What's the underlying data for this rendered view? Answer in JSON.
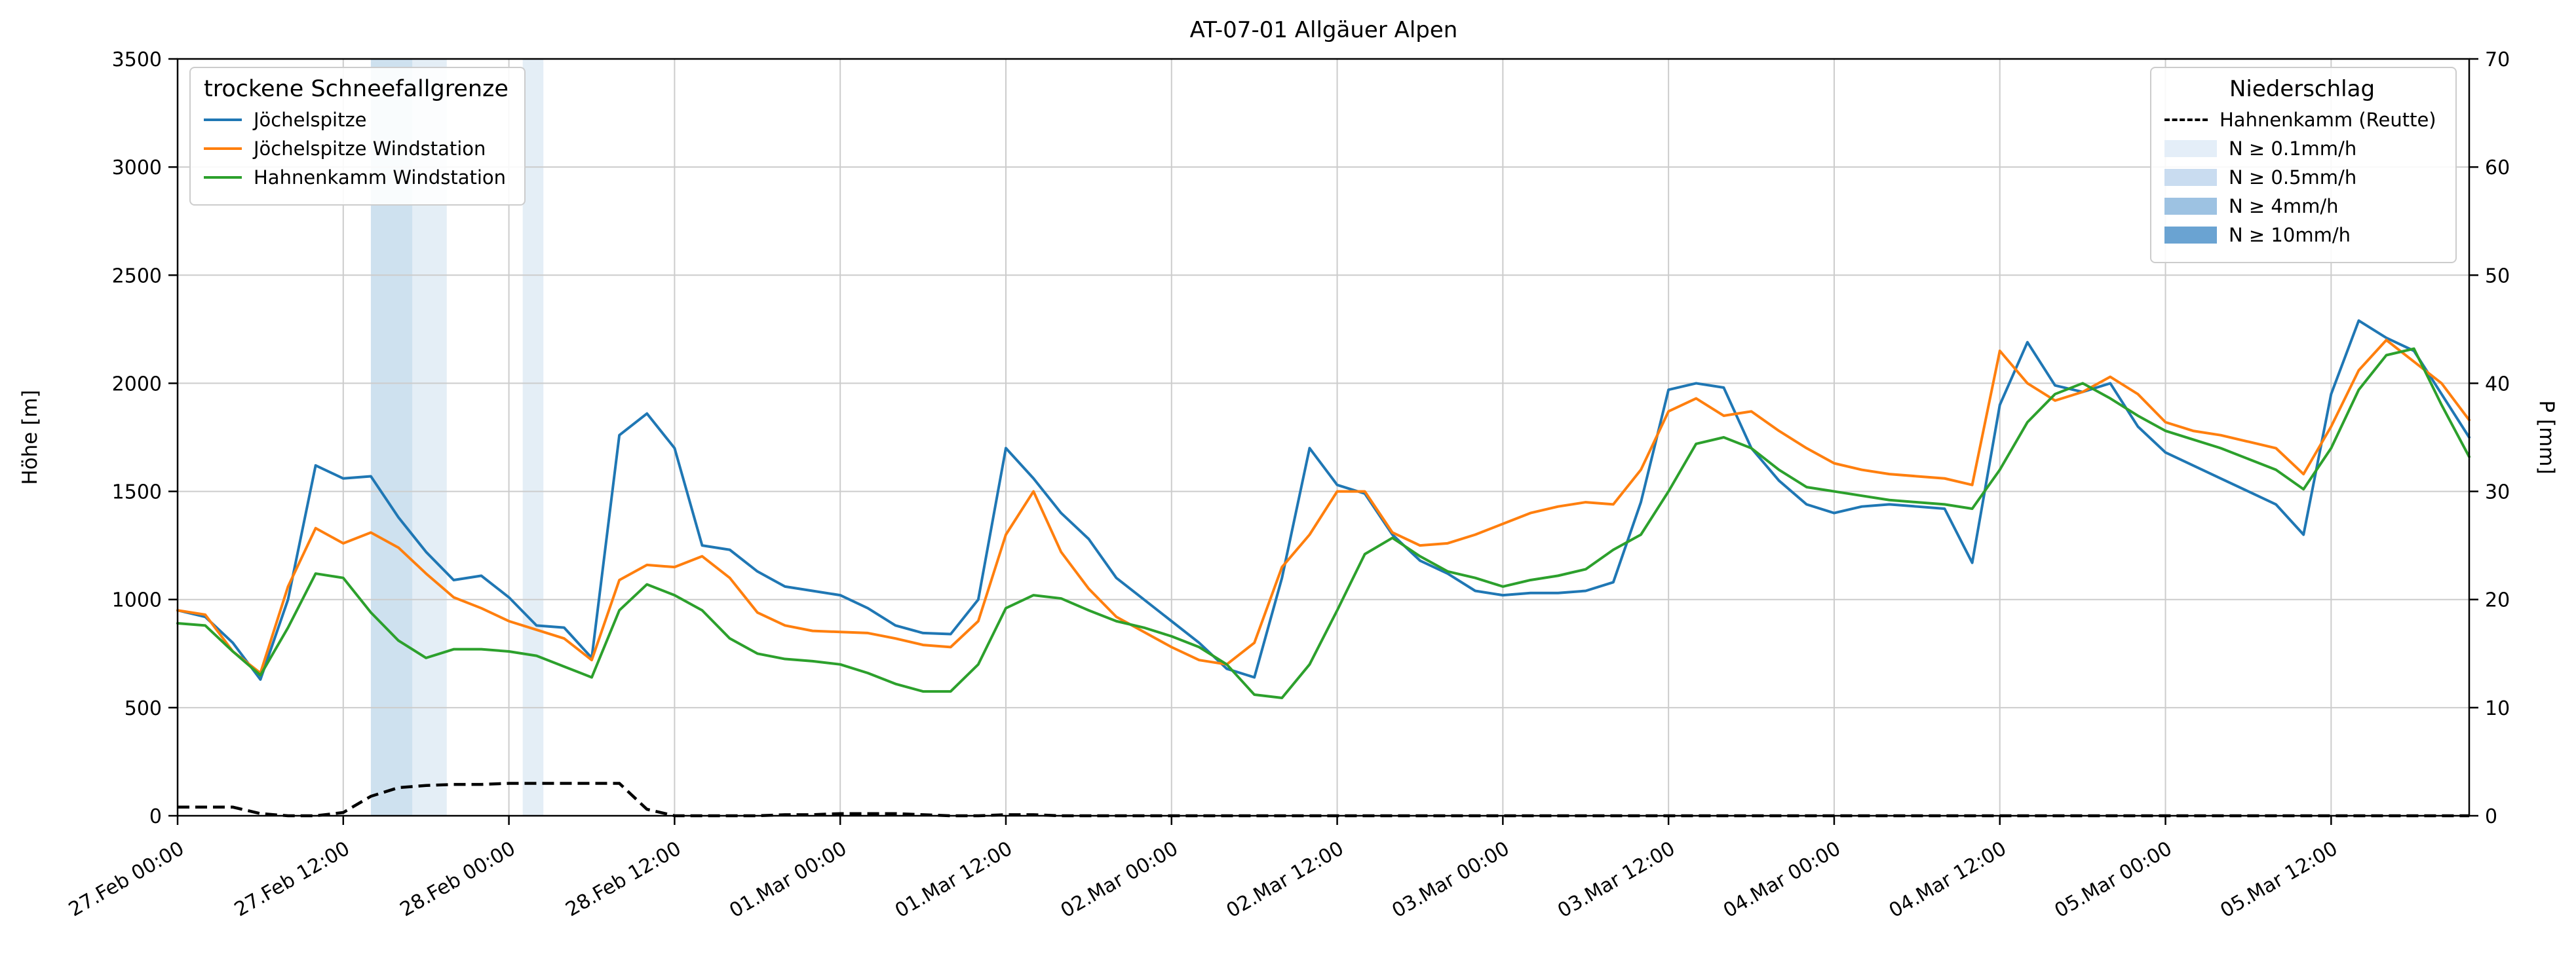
{
  "title": "AT-07-01 Allgäuer Alpen",
  "left_axis": {
    "label": "Höhe [m]"
  },
  "right_axis": {
    "label": "P [mm]"
  },
  "legend_snowline": {
    "title": "trockene Schneefallgrenze",
    "items": [
      {
        "label": "Jöchelspitze",
        "color": "#1f77b4"
      },
      {
        "label": "Jöchelspitze Windstation",
        "color": "#ff7f0e"
      },
      {
        "label": "Hahnenkamm Windstation",
        "color": "#2ca02c"
      }
    ]
  },
  "legend_precip": {
    "title": "Niederschlag",
    "line_item": {
      "label": "Hahnenkamm (Reutte)",
      "color": "#000000"
    },
    "patch_items": [
      {
        "label": "N ≥ 0.1mm/h",
        "color": "#e4eef8"
      },
      {
        "label": "N ≥ 0.5mm/h",
        "color": "#c9dcf0"
      },
      {
        "label": "N ≥ 4mm/h",
        "color": "#9dc2e2"
      },
      {
        "label": "N ≥ 10mm/h",
        "color": "#6aa3d2"
      }
    ]
  },
  "chart_data": {
    "type": "line",
    "title": "AT-07-01 Allgäuer Alpen",
    "xlabel": "",
    "ylabel_left": "Höhe [m]",
    "ylabel_right": "P [mm]",
    "grid": true,
    "x_unit": "hours since 27.Feb 00:00",
    "x_range": [
      0,
      166
    ],
    "y_left_range": [
      0,
      3500
    ],
    "y_right_range": [
      0,
      70
    ],
    "y_left_ticks": [
      0,
      500,
      1000,
      1500,
      2000,
      2500,
      3000,
      3500
    ],
    "y_right_ticks": [
      0,
      10,
      20,
      30,
      40,
      50,
      60,
      70
    ],
    "x_ticks": [
      {
        "hour": 0,
        "label": "27.Feb 00:00"
      },
      {
        "hour": 12,
        "label": "27.Feb 12:00"
      },
      {
        "hour": 24,
        "label": "28.Feb 00:00"
      },
      {
        "hour": 36,
        "label": "28.Feb 12:00"
      },
      {
        "hour": 48,
        "label": "01.Mar 00:00"
      },
      {
        "hour": 60,
        "label": "01.Mar 12:00"
      },
      {
        "hour": 72,
        "label": "02.Mar 00:00"
      },
      {
        "hour": 84,
        "label": "02.Mar 12:00"
      },
      {
        "hour": 96,
        "label": "03.Mar 00:00"
      },
      {
        "hour": 108,
        "label": "03.Mar 12:00"
      },
      {
        "hour": 120,
        "label": "04.Mar 00:00"
      },
      {
        "hour": 132,
        "label": "04.Mar 12:00"
      },
      {
        "hour": 144,
        "label": "05.Mar 00:00"
      },
      {
        "hour": 156,
        "label": "05.Mar 12:00"
      }
    ],
    "x_hours": [
      0,
      2,
      4,
      6,
      8,
      10,
      12,
      14,
      16,
      18,
      20,
      22,
      24,
      26,
      28,
      30,
      32,
      34,
      36,
      38,
      40,
      42,
      44,
      46,
      48,
      50,
      52,
      54,
      56,
      58,
      60,
      62,
      64,
      66,
      68,
      70,
      72,
      74,
      76,
      78,
      80,
      82,
      84,
      86,
      88,
      90,
      92,
      94,
      96,
      98,
      100,
      102,
      104,
      106,
      108,
      110,
      112,
      114,
      116,
      118,
      120,
      122,
      124,
      126,
      128,
      130,
      132,
      134,
      136,
      138,
      140,
      142,
      144,
      146,
      148,
      150,
      152,
      154,
      156,
      158,
      160,
      162,
      164,
      166
    ],
    "series": [
      {
        "name": "Jöchelspitze",
        "color": "#1f77b4",
        "axis": "left",
        "values": [
          950,
          920,
          800,
          630,
          1000,
          1620,
          1560,
          1570,
          1380,
          1220,
          1090,
          1110,
          1010,
          880,
          870,
          730,
          1760,
          1860,
          1700,
          1250,
          1230,
          1130,
          1060,
          1040,
          1020,
          960,
          880,
          845,
          840,
          1000,
          1700,
          1560,
          1400,
          1280,
          1100,
          1000,
          900,
          800,
          680,
          640,
          1100,
          1700,
          1530,
          1490,
          1300,
          1180,
          1120,
          1040,
          1020,
          1030,
          1030,
          1040,
          1080,
          1450,
          1970,
          2000,
          1980,
          1700,
          1550,
          1440,
          1400,
          1430,
          1440,
          1430,
          1420,
          1170,
          1900,
          2190,
          1990,
          1960,
          2000,
          1800,
          1680,
          1620,
          1560,
          1500,
          1440,
          1300,
          1950,
          2290,
          2210,
          2150,
          1950,
          1750
        ]
      },
      {
        "name": "Jöchelspitze Windstation",
        "color": "#ff7f0e",
        "axis": "left",
        "values": [
          950,
          930,
          760,
          660,
          1060,
          1330,
          1260,
          1310,
          1240,
          1120,
          1010,
          960,
          900,
          860,
          820,
          720,
          1090,
          1160,
          1150,
          1200,
          1100,
          940,
          880,
          855,
          850,
          845,
          820,
          790,
          780,
          900,
          1300,
          1500,
          1220,
          1050,
          920,
          850,
          780,
          720,
          700,
          800,
          1150,
          1300,
          1500,
          1500,
          1310,
          1250,
          1260,
          1300,
          1350,
          1400,
          1430,
          1450,
          1440,
          1600,
          1870,
          1930,
          1850,
          1870,
          1780,
          1700,
          1630,
          1600,
          1580,
          1570,
          1560,
          1530,
          2150,
          2000,
          1920,
          1960,
          2030,
          1950,
          1820,
          1780,
          1760,
          1730,
          1700,
          1580,
          1800,
          2060,
          2200,
          2100,
          2000,
          1830
        ]
      },
      {
        "name": "Hahnenkamm Windstation",
        "color": "#2ca02c",
        "axis": "left",
        "values": [
          890,
          880,
          760,
          650,
          870,
          1120,
          1100,
          940,
          810,
          730,
          770,
          770,
          760,
          740,
          690,
          640,
          950,
          1070,
          1020,
          950,
          820,
          750,
          725,
          715,
          700,
          660,
          610,
          575,
          575,
          700,
          960,
          1020,
          1005,
          950,
          900,
          870,
          830,
          780,
          700,
          560,
          545,
          700,
          950,
          1210,
          1285,
          1200,
          1130,
          1100,
          1060,
          1090,
          1110,
          1140,
          1230,
          1300,
          1500,
          1720,
          1750,
          1700,
          1600,
          1520,
          1500,
          1480,
          1460,
          1450,
          1440,
          1420,
          1600,
          1820,
          1950,
          2000,
          1930,
          1850,
          1780,
          1740,
          1700,
          1650,
          1600,
          1510,
          1700,
          1970,
          2130,
          2160,
          1900,
          1660
        ]
      }
    ],
    "precipitation_line": {
      "name": "Hahnenkamm (Reutte)",
      "color": "#000000",
      "axis": "right",
      "style": "dashed",
      "unit": "mm",
      "values": [
        0.8,
        0.8,
        0.8,
        0.2,
        0,
        0,
        0.3,
        1.8,
        2.6,
        2.8,
        2.9,
        2.9,
        3,
        3,
        3,
        3,
        3,
        0.6,
        0,
        0,
        0,
        0,
        0.1,
        0.1,
        0.2,
        0.2,
        0.2,
        0.1,
        0,
        0,
        0.1,
        0.1,
        0,
        0,
        0,
        0,
        0,
        0,
        0,
        0,
        0,
        0,
        0,
        0,
        0,
        0,
        0,
        0,
        0,
        0,
        0,
        0,
        0,
        0,
        0,
        0,
        0,
        0,
        0,
        0,
        0,
        0,
        0,
        0,
        0,
        0,
        0,
        0,
        0,
        0,
        0,
        0,
        0,
        0,
        0,
        0,
        0,
        0,
        0,
        0,
        0,
        0,
        0,
        0
      ]
    },
    "precip_bands": [
      {
        "from_hour": 14,
        "to_hour": 17,
        "level": "N ≥ 0.5mm/h",
        "color": "rgba(31,119,180,0.22)"
      },
      {
        "from_hour": 17,
        "to_hour": 19.5,
        "level": "N ≥ 0.1mm/h",
        "color": "rgba(31,119,180,0.12)"
      },
      {
        "from_hour": 25,
        "to_hour": 26.5,
        "level": "N ≥ 0.1mm/h",
        "color": "rgba(31,119,180,0.12)"
      }
    ],
    "legend_positions": {
      "snowline": "upper left",
      "precip": "upper right"
    }
  }
}
